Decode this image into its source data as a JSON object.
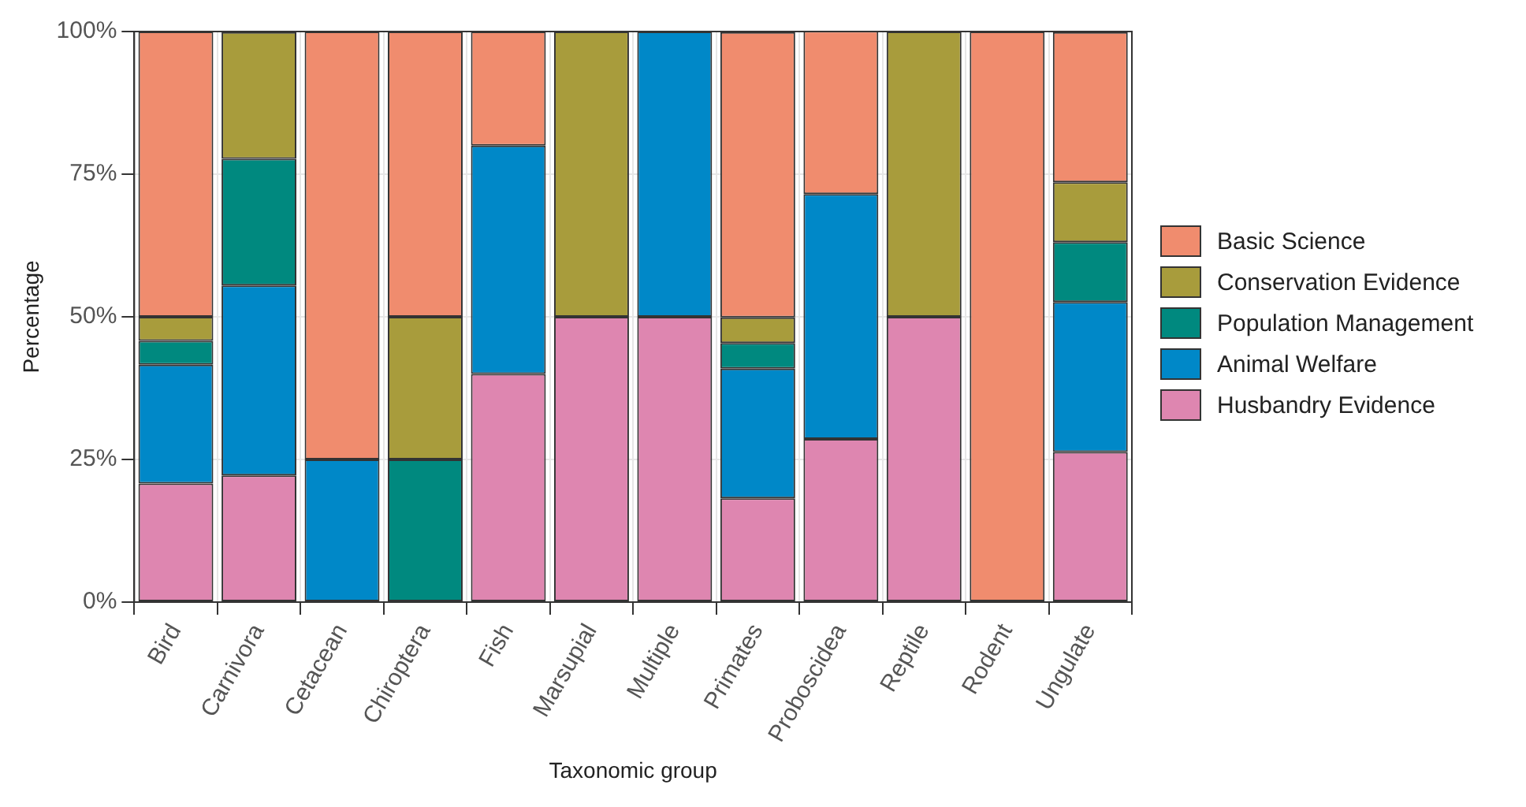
{
  "chart_data": {
    "type": "bar",
    "stacked": true,
    "xlabel": "Taxonomic group",
    "ylabel": "Percentage",
    "categories": [
      "Bird",
      "Carnivora",
      "Cetacean",
      "Chiroptera",
      "Fish",
      "Marsupial",
      "Multiple",
      "Primates",
      "Proboscidea",
      "Reptile",
      "Rodent",
      "Ungulate"
    ],
    "series": [
      {
        "name": "Husbandry Evidence",
        "color": "#de86b0",
        "values": [
          20.8,
          22.2,
          0,
          0,
          40,
          50,
          50,
          18.2,
          28.6,
          50,
          0,
          26.3
        ]
      },
      {
        "name": "Animal Welfare",
        "color": "#0088c8",
        "values": [
          20.8,
          33.3,
          25,
          0,
          40,
          0,
          50,
          22.7,
          42.9,
          0,
          0,
          26.3
        ]
      },
      {
        "name": "Population Management",
        "color": "#00897f",
        "values": [
          4.2,
          22.2,
          0,
          25,
          0,
          0,
          0,
          4.5,
          0,
          0,
          0,
          10.5
        ]
      },
      {
        "name": "Conservation Evidence",
        "color": "#a89c3c",
        "values": [
          4.2,
          22.2,
          0,
          25,
          0,
          50,
          0,
          4.5,
          0,
          50,
          0,
          10.5
        ]
      },
      {
        "name": "Basic Science",
        "color": "#f08c6e",
        "values": [
          50,
          0,
          75,
          50,
          20,
          0,
          0,
          50,
          28.6,
          0,
          100,
          26.3
        ]
      }
    ],
    "ylim": [
      0,
      100
    ],
    "yticks": [
      {
        "value": 0,
        "label": "0%"
      },
      {
        "value": 25,
        "label": "25%"
      },
      {
        "value": 50,
        "label": "50%"
      },
      {
        "value": 75,
        "label": "75%"
      },
      {
        "value": 100,
        "label": "100%"
      }
    ],
    "grid": true,
    "legend": "right"
  }
}
